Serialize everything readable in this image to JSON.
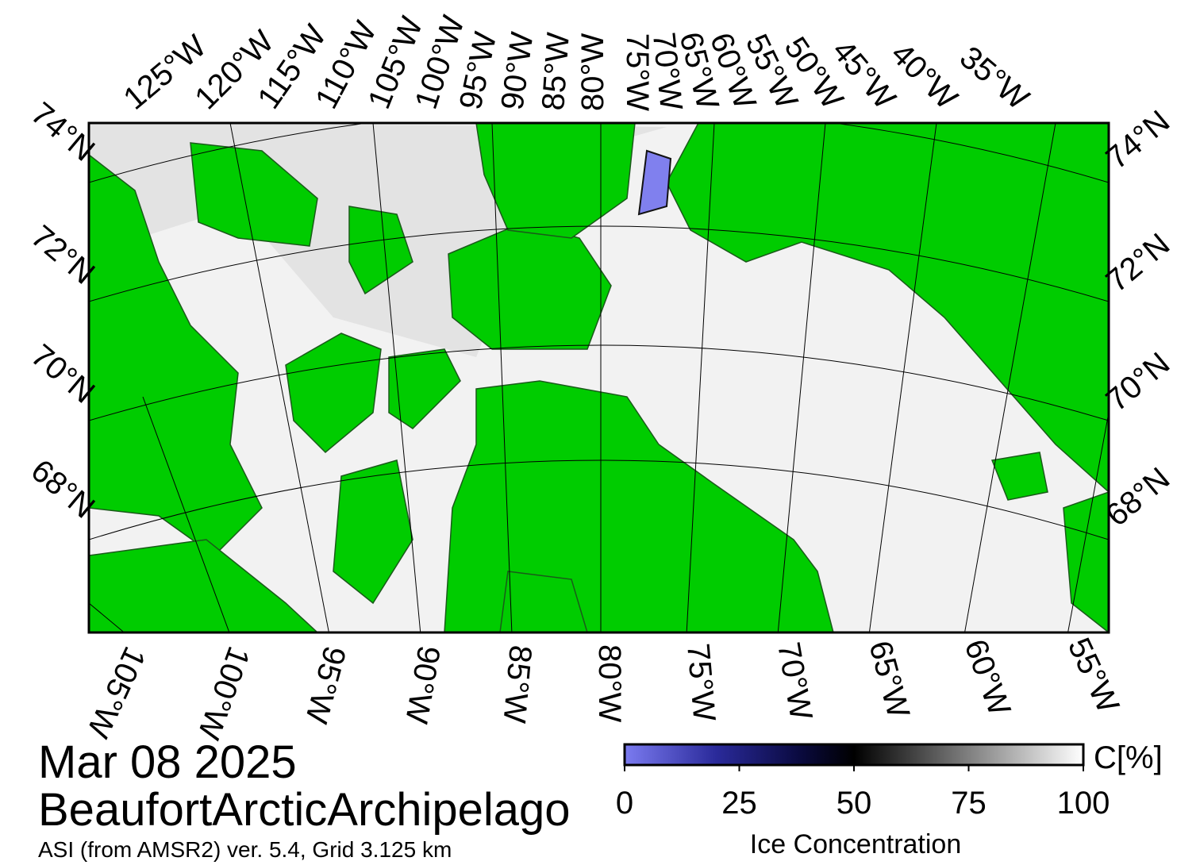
{
  "map": {
    "top_lon_labels": [
      "125°W",
      "120°W",
      "115°W",
      "110°W",
      "105°W",
      "100°W",
      "95°W",
      "90°W",
      "85°W",
      "80°W",
      "75°W",
      "70°W",
      "65°W",
      "60°W",
      "55°W",
      "50°W",
      "45°W",
      "40°W",
      "35°W"
    ],
    "bottom_lon_labels": [
      "105°W",
      "100°W",
      "95°W",
      "90°W",
      "85°W",
      "80°W",
      "75°W",
      "70°W",
      "65°W",
      "60°W",
      "55°W"
    ],
    "left_lat_labels": [
      "74°N",
      "72°N",
      "70°N",
      "68°N"
    ],
    "right_lat_labels": [
      "74°N",
      "72°N",
      "70°N",
      "68°N"
    ]
  },
  "date": "Mar 08 2025",
  "region": "BeaufortArcticArchipelago",
  "subtitle": "ASI (from AMSR2) ver. 5.4,  Grid 3.125 km",
  "colorbar": {
    "lim": [
      0,
      100
    ],
    "ticks": [
      0,
      25,
      50,
      75,
      100
    ],
    "unit": "C[%]",
    "label": "Ice Concentration"
  }
}
